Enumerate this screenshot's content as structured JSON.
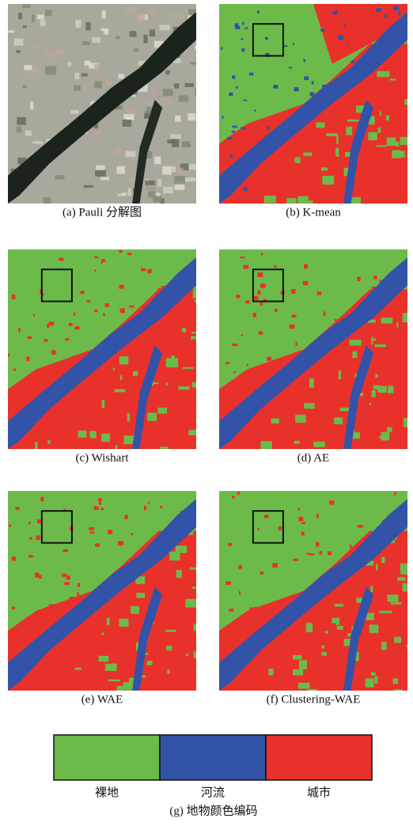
{
  "panels": [
    {
      "caption": "(a) Pauli 分解图"
    },
    {
      "caption": "(b) K-mean"
    },
    {
      "caption": "(c) Wishart"
    },
    {
      "caption": "(d) AE"
    },
    {
      "caption": "(e) WAE"
    },
    {
      "caption": "(f) Clustering-WAE"
    }
  ],
  "legend": {
    "items": [
      {
        "label": "裸地",
        "color": "#6cbb4a"
      },
      {
        "label": "河流",
        "color": "#3253a8"
      },
      {
        "label": "城市",
        "color": "#e8312b"
      }
    ],
    "caption": "(g) 地物颜色编码"
  }
}
